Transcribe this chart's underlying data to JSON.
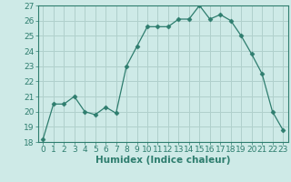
{
  "x": [
    0,
    1,
    2,
    3,
    4,
    5,
    6,
    7,
    8,
    9,
    10,
    11,
    12,
    13,
    14,
    15,
    16,
    17,
    18,
    19,
    20,
    21,
    22,
    23
  ],
  "y": [
    18.2,
    20.5,
    20.5,
    21.0,
    20.0,
    19.8,
    20.3,
    19.9,
    23.0,
    24.3,
    25.6,
    25.6,
    25.6,
    26.1,
    26.1,
    27.0,
    26.1,
    26.4,
    26.0,
    25.0,
    23.8,
    22.5,
    20.0,
    18.8
  ],
  "line_color": "#2e7d6e",
  "marker": "D",
  "marker_size": 2.5,
  "bg_color": "#ceeae7",
  "grid_color": "#b0d0cc",
  "ylim": [
    18,
    27
  ],
  "yticks": [
    18,
    19,
    20,
    21,
    22,
    23,
    24,
    25,
    26,
    27
  ],
  "xticks": [
    0,
    1,
    2,
    3,
    4,
    5,
    6,
    7,
    8,
    9,
    10,
    11,
    12,
    13,
    14,
    15,
    16,
    17,
    18,
    19,
    20,
    21,
    22,
    23
  ],
  "xlabel": "Humidex (Indice chaleur)",
  "tick_fontsize": 6.5,
  "label_fontsize": 7.5
}
